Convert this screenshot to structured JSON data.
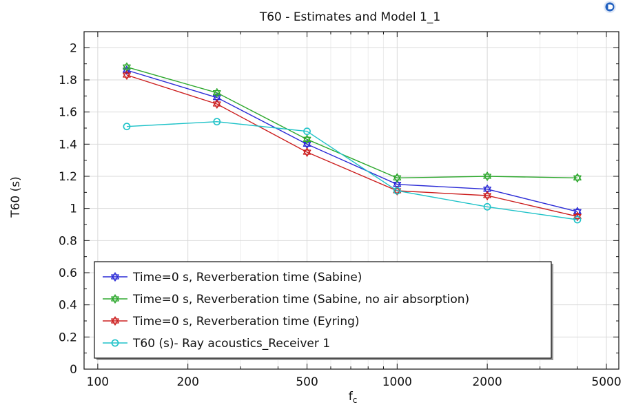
{
  "chart_data": {
    "type": "line",
    "title": "T60 - Estimates and Model 1_1",
    "xlabel_main": "f",
    "xlabel_sub": "c",
    "ylabel": "T60 (s)",
    "xscale": "log",
    "xlim": [
      90,
      5500
    ],
    "ylim": [
      0,
      2.1
    ],
    "xticks": [
      100,
      200,
      500,
      1000,
      2000,
      5000
    ],
    "xtick_labels": [
      "100",
      "200",
      "500",
      "1000",
      "2000",
      "5000"
    ],
    "yticks": [
      0,
      0.2,
      0.4,
      0.6,
      0.8,
      1,
      1.2,
      1.4,
      1.6,
      1.8,
      2
    ],
    "ytick_labels": [
      "0",
      "0.2",
      "0.4",
      "0.6",
      "0.8",
      "1",
      "1.2",
      "1.4",
      "1.6",
      "1.8",
      "2"
    ],
    "grid": true,
    "legend_position": "bottom-left",
    "x": [
      125,
      250,
      500,
      1000,
      2000,
      4000
    ],
    "series": [
      {
        "name": "Time=0 s, Reverberation time (Sabine)",
        "color": "#2b2bd6",
        "marker": "star",
        "values": [
          1.86,
          1.69,
          1.4,
          1.15,
          1.12,
          0.98
        ]
      },
      {
        "name": "Time=0 s, Reverberation time (Sabine, no air absorption)",
        "color": "#2ea82e",
        "marker": "star",
        "values": [
          1.88,
          1.72,
          1.43,
          1.19,
          1.2,
          1.19
        ]
      },
      {
        "name": "Time=0 s, Reverberation time (Eyring)",
        "color": "#cc1f1f",
        "marker": "star",
        "values": [
          1.83,
          1.65,
          1.35,
          1.11,
          1.08,
          0.95
        ]
      },
      {
        "name": "T60 (s)- Ray acoustics_Receiver 1",
        "color": "#1ec2c8",
        "marker": "circle",
        "values": [
          1.51,
          1.54,
          1.48,
          1.11,
          1.01,
          0.93
        ]
      }
    ]
  },
  "app_icon": {
    "name": "comsol-logo-icon",
    "color": "#1f5fbf"
  }
}
